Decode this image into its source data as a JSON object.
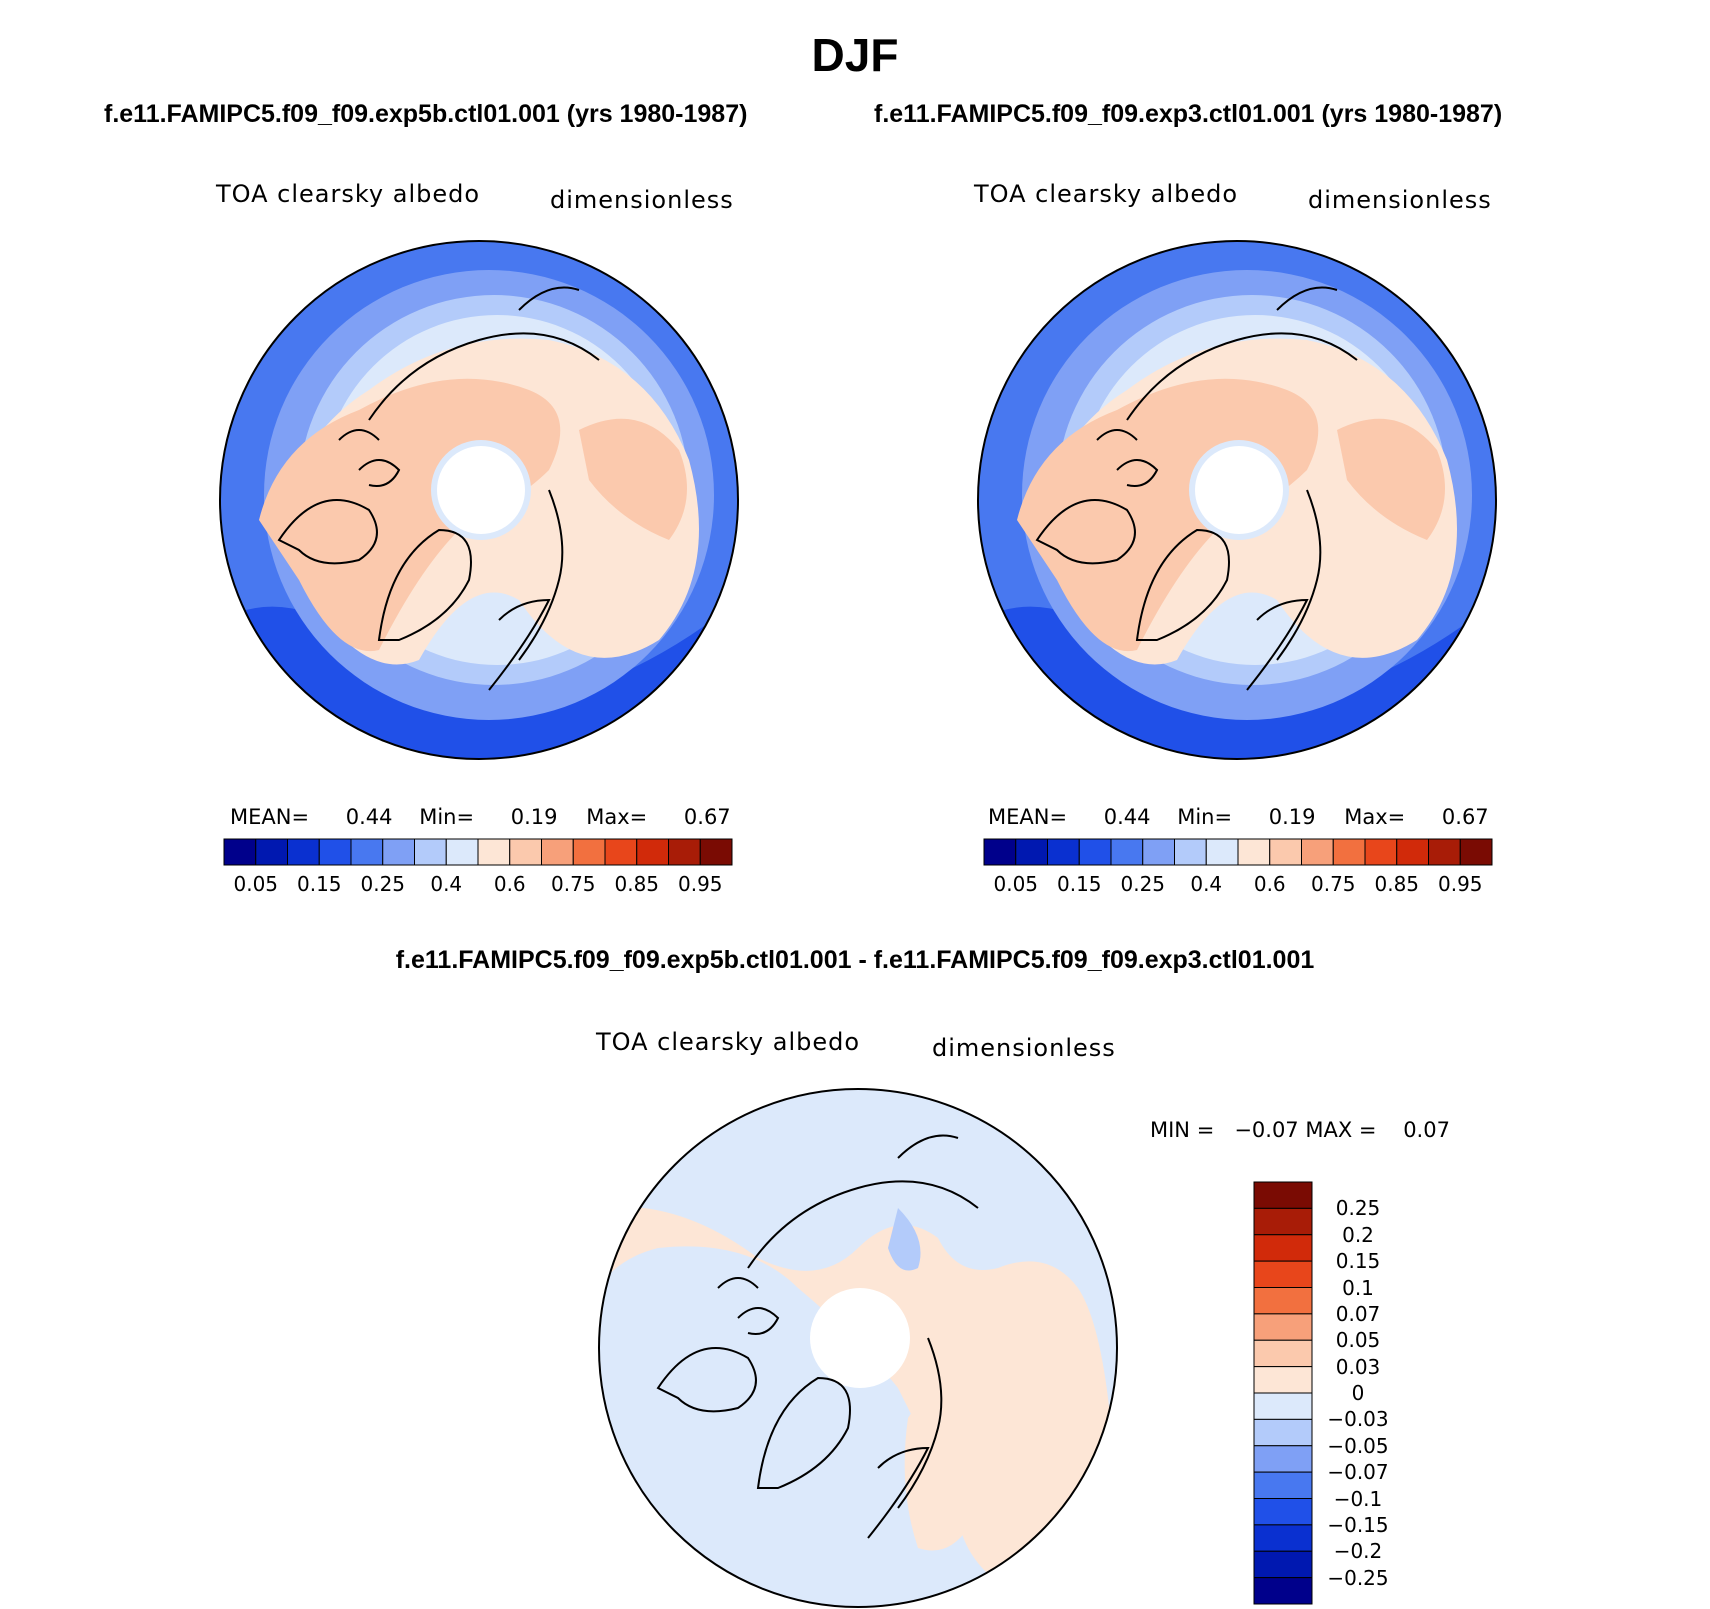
{
  "season": "DJF",
  "panels": [
    {
      "case_title": "f.e11.FAMIPC5.f09_f09.exp5b.ctl01.001 (yrs 1980-1987)",
      "variable": "TOA clearsky albedo",
      "units": "dimensionless",
      "stats": {
        "mean_label": "MEAN=",
        "mean": "0.44",
        "min_label": "Min=",
        "min": "0.19",
        "max_label": "Max=",
        "max": "0.67"
      }
    },
    {
      "case_title": "f.e11.FAMIPC5.f09_f09.exp3.ctl01.001 (yrs 1980-1987)",
      "variable": "TOA clearsky albedo",
      "units": "dimensionless",
      "stats": {
        "mean_label": "MEAN=",
        "mean": "0.44",
        "min_label": "Min=",
        "min": "0.19",
        "max_label": "Max=",
        "max": "0.67"
      }
    }
  ],
  "colorbar": {
    "colors": [
      "#00008b",
      "#0018b0",
      "#0a30d0",
      "#2050e8",
      "#4878f0",
      "#7fa0f5",
      "#b3cbfa",
      "#dce9fb",
      "#fde6d6",
      "#fbc9ad",
      "#f7a07a",
      "#f2703f",
      "#e8461b",
      "#d12a0a",
      "#a81c07",
      "#7a0b03"
    ],
    "tick_labels": [
      "0.05",
      "0.15",
      "0.25",
      "0.4",
      "0.6",
      "0.75",
      "0.85",
      "0.95"
    ]
  },
  "diff": {
    "title": "f.e11.FAMIPC5.f09_f09.exp5b.ctl01.001 - f.e11.FAMIPC5.f09_f09.exp3.ctl01.001",
    "variable": "TOA clearsky albedo",
    "units": "dimensionless",
    "minmax": "MIN =   −0.07 MAX =    0.07",
    "colors": [
      "#7a0b03",
      "#a81c07",
      "#d12a0a",
      "#e8461b",
      "#f2703f",
      "#f7a07a",
      "#fbc9ad",
      "#fde6d6",
      "#dce9fb",
      "#b3cbfa",
      "#7fa0f5",
      "#4878f0",
      "#2050e8",
      "#0a30d0",
      "#0018b0",
      "#00008b"
    ],
    "tick_labels": [
      "0.25",
      "0.2",
      "0.15",
      "0.1",
      "0.07",
      "0.05",
      "0.03",
      "0",
      "−0.03",
      "−0.05",
      "−0.07",
      "−0.1",
      "−0.15",
      "−0.2",
      "−0.25"
    ]
  }
}
